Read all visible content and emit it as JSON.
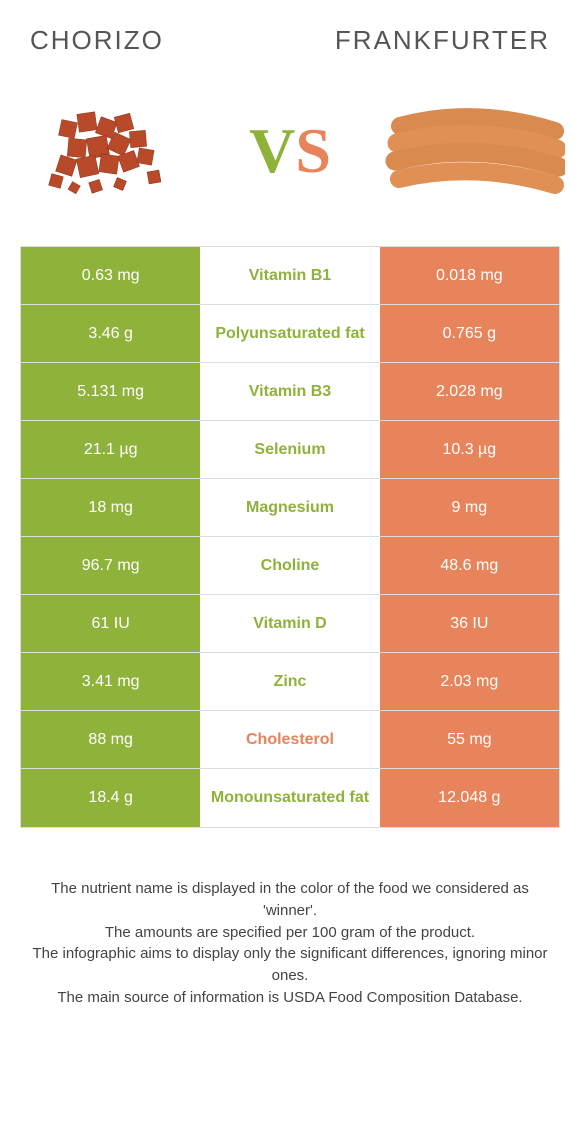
{
  "header": {
    "left_title": "Chorizo",
    "right_title": "Frankfurter"
  },
  "vs": {
    "v": "V",
    "s": "S"
  },
  "colors": {
    "left_bg": "#8fb23b",
    "right_bg": "#e8845b",
    "left_text": "#8fb23b",
    "right_text": "#e8845b",
    "cell_text": "#ffffff",
    "row_border": "#dddddd"
  },
  "table": {
    "rows": [
      {
        "left": "0.63 mg",
        "mid": "Vitamin B1",
        "right": "0.018 mg",
        "winner": "left"
      },
      {
        "left": "3.46 g",
        "mid": "Polyunsaturated fat",
        "right": "0.765 g",
        "winner": "left"
      },
      {
        "left": "5.131 mg",
        "mid": "Vitamin B3",
        "right": "2.028 mg",
        "winner": "left"
      },
      {
        "left": "21.1 µg",
        "mid": "Selenium",
        "right": "10.3 µg",
        "winner": "left"
      },
      {
        "left": "18 mg",
        "mid": "Magnesium",
        "right": "9 mg",
        "winner": "left"
      },
      {
        "left": "96.7 mg",
        "mid": "Choline",
        "right": "48.6 mg",
        "winner": "left"
      },
      {
        "left": "61 IU",
        "mid": "Vitamin D",
        "right": "36 IU",
        "winner": "left"
      },
      {
        "left": "3.41 mg",
        "mid": "Zinc",
        "right": "2.03 mg",
        "winner": "left"
      },
      {
        "left": "88 mg",
        "mid": "Cholesterol",
        "right": "55 mg",
        "winner": "right"
      },
      {
        "left": "18.4 g",
        "mid": "Monounsaturated fat",
        "right": "12.048 g",
        "winner": "left"
      }
    ]
  },
  "footer": {
    "line1": "The nutrient name is displayed in the color of the food we considered as 'winner'.",
    "line2": "The amounts are specified per 100 gram of the product.",
    "line3": "The infographic aims to display only the significant differences, ignoring minor ones.",
    "line4": "The main source of information is USDA Food Composition Database."
  }
}
